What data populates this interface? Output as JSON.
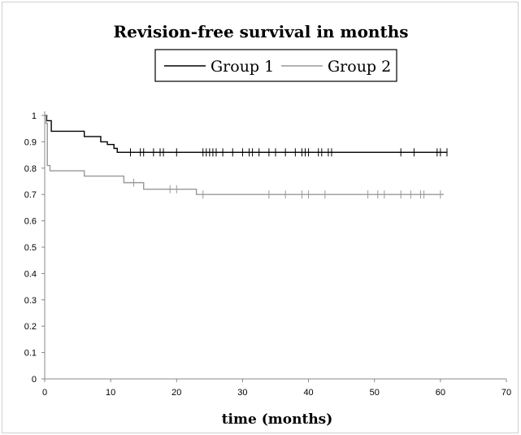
{
  "chart_data": {
    "type": "line",
    "title": "Revision-free survival in months",
    "xlabel": "time (months)",
    "ylabel": "",
    "xlim": [
      0,
      70
    ],
    "ylim": [
      0,
      1
    ],
    "x_ticks": [
      0,
      10,
      20,
      30,
      40,
      50,
      60,
      70
    ],
    "y_ticks": [
      0,
      0.1,
      0.2,
      0.3,
      0.4,
      0.5,
      0.6,
      0.7,
      0.8,
      0.9,
      1
    ],
    "grid": false,
    "legend_position": "top-center",
    "series": [
      {
        "name": "Group 1",
        "color": "#000000",
        "step": true,
        "points": [
          [
            0,
            1.0
          ],
          [
            0.3,
            0.98
          ],
          [
            1,
            0.94
          ],
          [
            6,
            0.92
          ],
          [
            8.5,
            0.9
          ],
          [
            9.5,
            0.89
          ],
          [
            10.5,
            0.875
          ],
          [
            11,
            0.86
          ],
          [
            61,
            0.86
          ]
        ],
        "censored": [
          13,
          14.5,
          15,
          16.5,
          17.5,
          18,
          20,
          24,
          24.5,
          25,
          25.5,
          26,
          27,
          28.5,
          30,
          31,
          31.5,
          32.5,
          34,
          35,
          36.5,
          38,
          39,
          39.5,
          40,
          41.5,
          42,
          43,
          43.5,
          54,
          56,
          59.5,
          60,
          61
        ]
      },
      {
        "name": "Group 2",
        "color": "#999999",
        "step": true,
        "points": [
          [
            0,
            1.0
          ],
          [
            0.2,
            0.97
          ],
          [
            0.4,
            0.81
          ],
          [
            0.8,
            0.79
          ],
          [
            6,
            0.77
          ],
          [
            12,
            0.745
          ],
          [
            15,
            0.72
          ],
          [
            23,
            0.7
          ],
          [
            60.5,
            0.7
          ]
        ],
        "censored": [
          13.5,
          19,
          20,
          24,
          34,
          36.5,
          39,
          40,
          42.5,
          49,
          50.5,
          51.5,
          54,
          55.5,
          57,
          57.5,
          60
        ]
      }
    ]
  }
}
